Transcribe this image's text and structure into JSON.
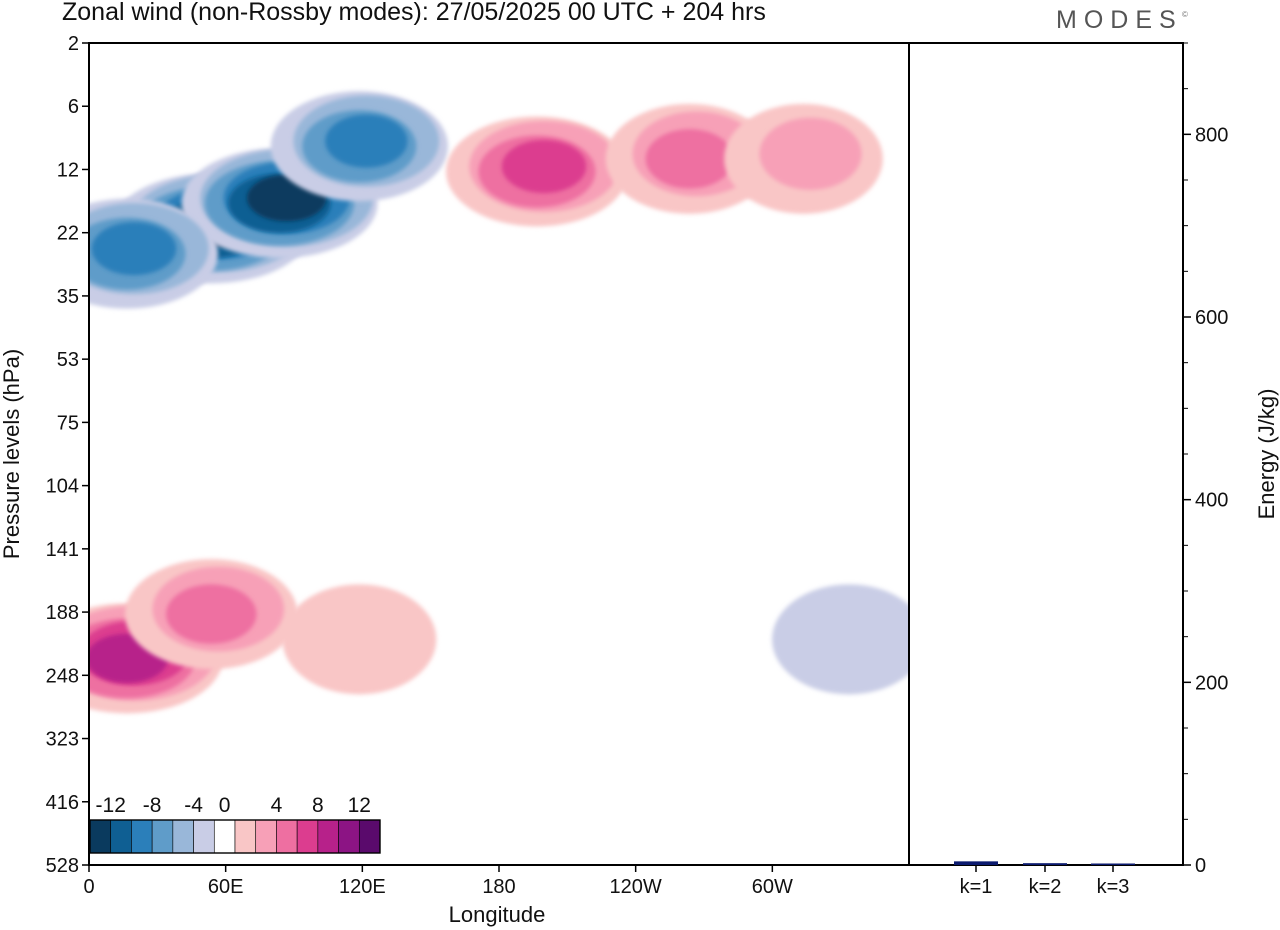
{
  "header": {
    "title": "Zonal wind (non-Rossby modes):  27/05/2025  00 UTC  + 204 hrs",
    "brand": "MODES"
  },
  "chart_data": [
    {
      "type": "heatmap",
      "title": "Zonal wind (non-Rossby modes):  27/05/2025  00 UTC  + 204 hrs",
      "xlabel": "Longitude",
      "ylabel": "Pressure levels (hPa)",
      "x_ticks": [
        "0",
        "60E",
        "120E",
        "180",
        "120W",
        "60W"
      ],
      "x_tick_degrees": [
        0,
        60,
        120,
        180,
        240,
        300
      ],
      "xlim": [
        0,
        360
      ],
      "y_ticks": [
        "2",
        "6",
        "12",
        "22",
        "35",
        "53",
        "75",
        "104",
        "141",
        "188",
        "248",
        "323",
        "416",
        "528"
      ],
      "colorbar": {
        "labels": [
          "-12",
          "-8",
          "-4",
          "0",
          "4",
          "8",
          "12"
        ],
        "label_values": [
          -12,
          -8,
          -4,
          0,
          4,
          8,
          12
        ],
        "levels": [
          -14,
          -12,
          -10,
          -8,
          -6,
          -4,
          -2,
          2,
          4,
          6,
          8,
          10,
          12,
          14
        ],
        "colors": [
          "#0a3a5e",
          "#0f5f93",
          "#2b7fba",
          "#5f9cc9",
          "#99b7d9",
          "#c9cde6",
          "#ffffff",
          "#f9c6c6",
          "#f7a0b7",
          "#ee6fa1",
          "#dc3d8f",
          "#b7218a",
          "#8c1484",
          "#5a0a6c"
        ]
      },
      "features": [
        {
          "lon": 55,
          "level": 2.9,
          "value": -13
        },
        {
          "lon": 85,
          "level": 2.5,
          "value": -12
        },
        {
          "lon": 18,
          "level": 3.3,
          "value": -9
        },
        {
          "lon": 120,
          "level": 1.6,
          "value": -8
        },
        {
          "lon": 198,
          "level": 2.0,
          "value": 9
        },
        {
          "lon": 265,
          "level": 1.8,
          "value": 6
        },
        {
          "lon": 315,
          "level": 1.8,
          "value": 4
        },
        {
          "lon": 18,
          "level": 9.7,
          "value": 11
        },
        {
          "lon": 55,
          "level": 9.0,
          "value": 7
        },
        {
          "lon": 120,
          "level": 9.4,
          "value": 3
        },
        {
          "lon": 335,
          "level": 9.4,
          "value": -3
        }
      ]
    },
    {
      "type": "bar",
      "categories": [
        "k=1",
        "k=2",
        "k=3"
      ],
      "values": [
        4,
        2,
        1.5
      ],
      "ylabel": "Energy (J/kg)",
      "ylim": [
        0,
        900
      ],
      "y_ticks": [
        0,
        200,
        400,
        600,
        800
      ],
      "bar_color": "#0b1a6e"
    }
  ]
}
